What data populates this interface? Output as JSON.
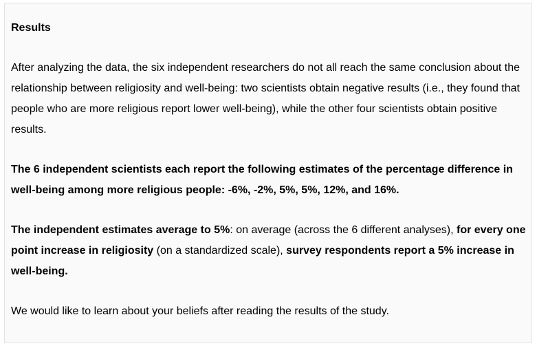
{
  "heading": "Results",
  "paragraph1": "After analyzing the data, the six independent researchers do not all reach the same conclusion about the relationship between religiosity and well-being: two scientists obtain negative results (i.e., they found that people who are more religious report lower well-being), while the other four scientists obtain positive results.",
  "paragraph2": "The 6 independent scientists each report the following estimates of the percentage difference in well-being among more religious people: -6%, -2%, 5%, 5%, 12%, and 16%.",
  "paragraph3": {
    "part1_bold": "The independent estimates average to 5%",
    "part2": ": on average (across the 6 different analyses), ",
    "part3_bold": "for every one point increase in religiosity",
    "part4": " (on a standardized scale), ",
    "part5_bold": "survey respondents report a 5% increase in well-being."
  },
  "paragraph4": "We would like to learn about your beliefs after reading the results of the study."
}
